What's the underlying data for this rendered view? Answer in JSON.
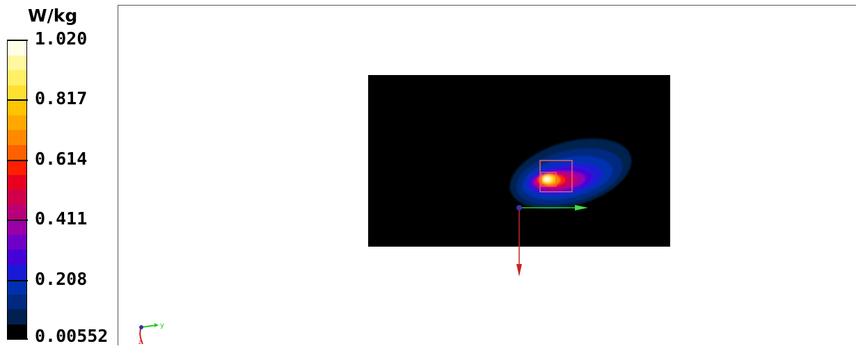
{
  "chart_data": {
    "type": "heatmap",
    "title": "",
    "colorbar": {
      "unit": "W/kg",
      "min": 0.00552,
      "max": 1.02,
      "tick_labels": [
        "1.020",
        "0.817",
        "0.614",
        "0.411",
        "0.208",
        "0.00552"
      ],
      "tick_values": [
        1.02,
        0.817,
        0.614,
        0.411,
        0.208,
        0.00552
      ],
      "colors": [
        "#ffffe8",
        "#fff8a0",
        "#fff066",
        "#ffe030",
        "#ffc400",
        "#ffa800",
        "#ff8a00",
        "#ff6000",
        "#ff2000",
        "#e80020",
        "#d0004a",
        "#b80078",
        "#9a00a8",
        "#7000c8",
        "#4600d8",
        "#1a1ad6",
        "#0030b0",
        "#002a80",
        "#002050",
        "#000000"
      ]
    },
    "hotspot": {
      "peak_value": 1.02,
      "location": "right of center"
    },
    "axes_triad": {
      "labels": [
        "y",
        "z"
      ],
      "colors": {
        "y": "#22cc22",
        "z": "#cc2222",
        "x": "#3333aa"
      }
    }
  }
}
